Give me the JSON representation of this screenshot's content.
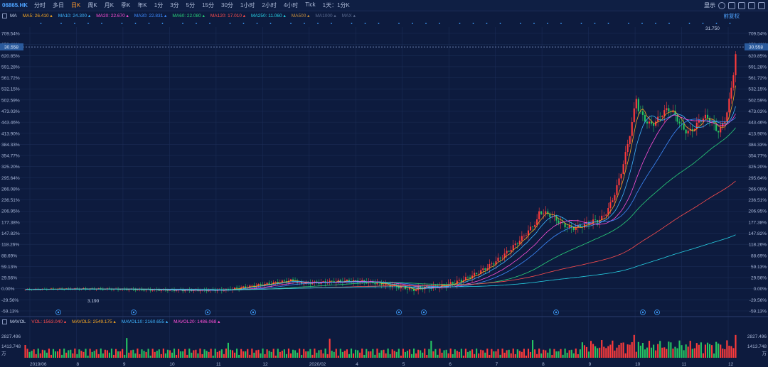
{
  "toolbar": {
    "ticker": "06865.HK",
    "periods": [
      "分时",
      "多日",
      "日K",
      "周K",
      "月K",
      "季K",
      "年K",
      "1分",
      "3分",
      "5分",
      "15分",
      "30分",
      "1小时",
      "2小时",
      "4小时",
      "Tick",
      "1天：1分K"
    ],
    "active_period": "日K",
    "display_label": "显示",
    "fq_label": "前复权"
  },
  "ma_legend": {
    "title": "MA",
    "items": [
      {
        "label": "MA5: 26.410",
        "color": "#f5a623"
      },
      {
        "label": "MA10: 24.300",
        "color": "#3fb5ff"
      },
      {
        "label": "MA20: 22.670",
        "color": "#ff4fd8"
      },
      {
        "label": "MA30: 22.831",
        "color": "#3d8bff"
      },
      {
        "label": "MA60: 22.080",
        "color": "#29d17a"
      },
      {
        "label": "MA120: 17.010",
        "color": "#ff4d4d"
      },
      {
        "label": "MA250: 11.060",
        "color": "#27d3e6"
      },
      {
        "label": "MA500",
        "color": "#c98f3c"
      },
      {
        "label": "MA1000",
        "color": "#5a6a8f"
      },
      {
        "label": "MAX",
        "color": "#5a6a8f"
      }
    ]
  },
  "vol_legend": {
    "title": "MAVOL",
    "items": [
      {
        "label": "VOL: 1563.040",
        "color": "#ff4d4d"
      },
      {
        "label": "MAVOL5: 2549.175",
        "color": "#f5a623"
      },
      {
        "label": "MAVOL10: 2160.655",
        "color": "#3fb5ff"
      },
      {
        "label": "MAVOL20: 1486.068",
        "color": "#ff4fd8"
      }
    ]
  },
  "price_axis_labels": [
    "709.54%",
    "650.41%",
    "620.85%",
    "591.28%",
    "561.72%",
    "532.15%",
    "502.59%",
    "473.03%",
    "443.46%",
    "413.90%",
    "384.33%",
    "354.77%",
    "325.20%",
    "295.64%",
    "266.08%",
    "236.51%",
    "206.95%",
    "177.38%",
    "147.82%",
    "118.26%",
    "88.69%",
    "59.13%",
    "29.56%",
    "0.00%",
    "-29.56%",
    "-59.13%"
  ],
  "price_tag": "30.558",
  "high_annotation": "31.750",
  "low_annotation": "3.190",
  "volume_axis_labels": [
    "2827.496",
    "1413.748",
    "万"
  ],
  "date_labels": [
    "2019/06",
    "8",
    "9",
    "10",
    "11",
    "12",
    "2020/02",
    "4",
    "5",
    "6",
    "7",
    "8",
    "9",
    "10",
    "11",
    "12"
  ],
  "colors": {
    "background": "#0d1b3e",
    "grid": "#1b2c56",
    "up": "#ff3b3b",
    "down": "#25c463",
    "axis_text": "#a8b6d6"
  }
}
